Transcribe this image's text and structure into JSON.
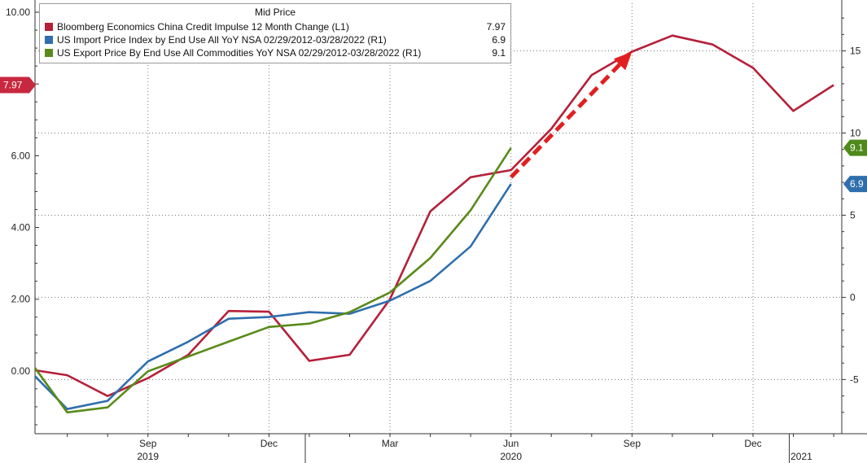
{
  "legend": {
    "header": "Mid Price",
    "items": [
      {
        "label": "Bloomberg Economics China Credit Impulse 12 Month Change  (L1)",
        "value": "7.97",
        "color": "#b5203a"
      },
      {
        "label": "US Import Price Index by End Use All YoY NSA 02/29/2012-03/28/2022  (R1)",
        "value": "6.9",
        "color": "#2f6fad"
      },
      {
        "label": "US Export Price By End Use All Commodities YoY NSA 02/29/2012-03/28/2022  (R1)",
        "value": "9.1",
        "color": "#5a8a1a"
      }
    ]
  },
  "chart_data": {
    "type": "line",
    "x_ticks": [
      {
        "label": "Sep",
        "m": 3
      },
      {
        "label": "Dec",
        "m": 6
      },
      {
        "label": "Mar",
        "m": 9
      },
      {
        "label": "Jun",
        "m": 12
      },
      {
        "label": "Sep",
        "m": 15
      },
      {
        "label": "Dec",
        "m": 18
      }
    ],
    "x_years": [
      {
        "label": "2019",
        "m": 3
      },
      {
        "label": "2020",
        "m": 12
      },
      {
        "label": "2021",
        "m": 19.2
      }
    ],
    "xlim": [
      0.2,
      20.2
    ],
    "left_axis": {
      "ylim": [
        -1.75,
        10.25
      ],
      "ticks": [
        "10.00",
        "6.00",
        "4.00",
        "2.00",
        "0.00"
      ],
      "tick_values": [
        10,
        6,
        4,
        2,
        0
      ]
    },
    "right_axis": {
      "ylim": [
        -8.3,
        17.9
      ],
      "ticks": [
        "15",
        "10",
        "5",
        "0",
        "-5"
      ],
      "tick_values": [
        15,
        10,
        5,
        0,
        -5
      ]
    },
    "series": [
      {
        "name": "Bloomberg Economics China Credit Impulse 12 Month Change",
        "axis": "left",
        "color": "#b5203a",
        "x": [
          0.2,
          1,
          2,
          3,
          4,
          5,
          6,
          7,
          8,
          9,
          10,
          11,
          12,
          13,
          14,
          15,
          16,
          17,
          18,
          19,
          20
        ],
        "y": [
          0.02,
          -0.12,
          -0.7,
          -0.2,
          0.45,
          1.67,
          1.65,
          0.28,
          0.45,
          2.0,
          4.45,
          5.4,
          5.6,
          6.75,
          8.25,
          8.9,
          9.35,
          9.1,
          8.45,
          7.25,
          7.97
        ]
      },
      {
        "name": "US Import Price Index by End Use All YoY NSA",
        "axis": "right",
        "color": "#2f6fad",
        "x": [
          0.2,
          1,
          2,
          3,
          4,
          5,
          6,
          7,
          8,
          9,
          10,
          11,
          12
        ],
        "y": [
          -4.8,
          -6.8,
          -6.3,
          -3.9,
          -2.7,
          -1.3,
          -1.2,
          -0.9,
          -1.0,
          -0.2,
          1.0,
          3.1,
          6.9
        ]
      },
      {
        "name": "US Export Price By End Use All Commodities YoY NSA",
        "axis": "right",
        "color": "#5a8a1a",
        "x": [
          0.2,
          1,
          2,
          3,
          4,
          5,
          6,
          7,
          8,
          9,
          10,
          11,
          12
        ],
        "y": [
          -4.3,
          -7.0,
          -6.7,
          -4.5,
          -3.6,
          -2.7,
          -1.8,
          -1.6,
          -0.9,
          0.3,
          2.4,
          5.3,
          9.1
        ]
      }
    ],
    "end_labels": [
      {
        "text": "7.97",
        "axis": "left",
        "value": 7.97,
        "color": "#c8283f"
      },
      {
        "text": "9.1",
        "axis": "right",
        "value": 9.1,
        "color": "#4f8a1a"
      },
      {
        "text": "6.9",
        "axis": "right",
        "value": 6.9,
        "color": "#2f6fad"
      }
    ],
    "arrow": {
      "from": [
        12,
        5.4
      ],
      "to": [
        15,
        8.9
      ],
      "color": "#e02020"
    }
  }
}
